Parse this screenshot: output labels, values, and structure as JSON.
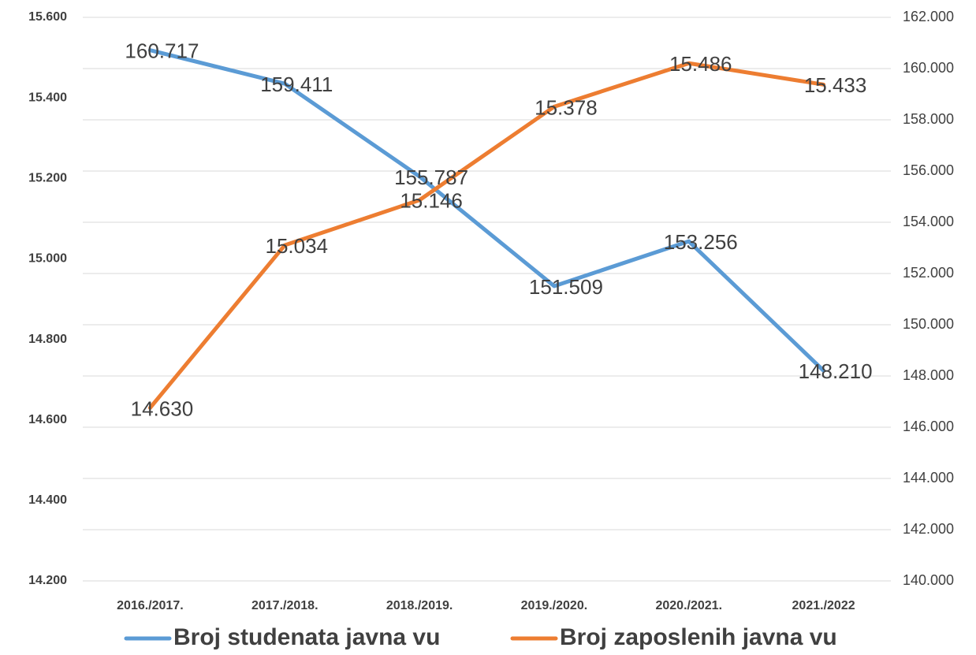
{
  "chart_data": {
    "type": "line",
    "categories": [
      "2016./2017.",
      "2017./2018.",
      "2018./2019.",
      "2019./2020.",
      "2020./2021.",
      "2021./2022"
    ],
    "series": [
      {
        "name": "Broj studenata javna vu",
        "color": "#5b9bd5",
        "axis": "y2",
        "values": [
          160717,
          159411,
          155787,
          151509,
          153256,
          148210
        ],
        "value_labels": [
          "160.717",
          "159.411",
          "155.787",
          "151.509",
          "153.256",
          "148.210"
        ]
      },
      {
        "name": "Broj zaposlenih javna vu",
        "color": "#ed7d31",
        "values": [
          14630,
          15034,
          15146,
          15378,
          15486,
          15433
        ],
        "value_labels": [
          "14.630",
          "15.034",
          "15.146",
          "15.378",
          "15.486",
          "15.433"
        ]
      }
    ],
    "ylim": [
      14200,
      15600
    ],
    "yticks": [
      {
        "value": 14200,
        "label": "14.200"
      },
      {
        "value": 14400,
        "label": "14.400"
      },
      {
        "value": 14600,
        "label": "14.600"
      },
      {
        "value": 14800,
        "label": "14.800"
      },
      {
        "value": 15000,
        "label": "15.000"
      },
      {
        "value": 15200,
        "label": "15.200"
      },
      {
        "value": 15400,
        "label": "15.400"
      },
      {
        "value": 15600,
        "label": "15.600"
      }
    ],
    "y2lim": [
      140000,
      162000
    ],
    "y2ticks": [
      {
        "value": 140000,
        "label": "140.000"
      },
      {
        "value": 142000,
        "label": "142.000"
      },
      {
        "value": 144000,
        "label": "144.000"
      },
      {
        "value": 146000,
        "label": "146.000"
      },
      {
        "value": 148000,
        "label": "148.000"
      },
      {
        "value": 150000,
        "label": "150.000"
      },
      {
        "value": 152000,
        "label": "152.000"
      },
      {
        "value": 154000,
        "label": "154.000"
      },
      {
        "value": 156000,
        "label": "156.000"
      },
      {
        "value": 158000,
        "label": "158.000"
      },
      {
        "value": 160000,
        "label": "160.000"
      },
      {
        "value": 162000,
        "label": "162.000"
      }
    ],
    "grid": true,
    "legend": "bottom"
  }
}
